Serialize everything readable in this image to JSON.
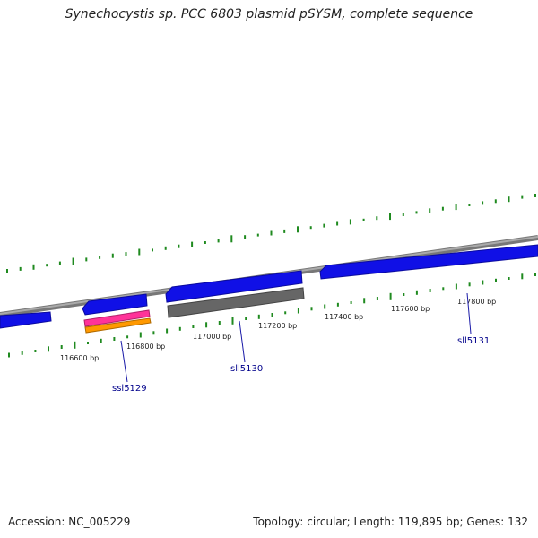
{
  "title": "Synechocystis sp. PCC 6803 plasmid pSYSM, complete sequence",
  "scale_labels": [
    "116600 bp",
    "116800 bp",
    "117000 bp",
    "117200 bp",
    "117400 bp",
    "117600 bp",
    "117800 bp"
  ],
  "genes": [
    "ssl5129",
    "sll5130",
    "sll5131"
  ],
  "footer": {
    "accession": "Accession: NC_005229",
    "stats": "Topology: circular; Length: 119,895 bp; Genes: 132"
  },
  "colors": {
    "backbone": "#8c8c8c",
    "gene": "#1010e6",
    "pseudo": "#666666",
    "feature_pink": "#ff3399",
    "feature_orange": "#ff9900",
    "gc_ticks": "#1f8a1f",
    "label": "#00008b"
  }
}
